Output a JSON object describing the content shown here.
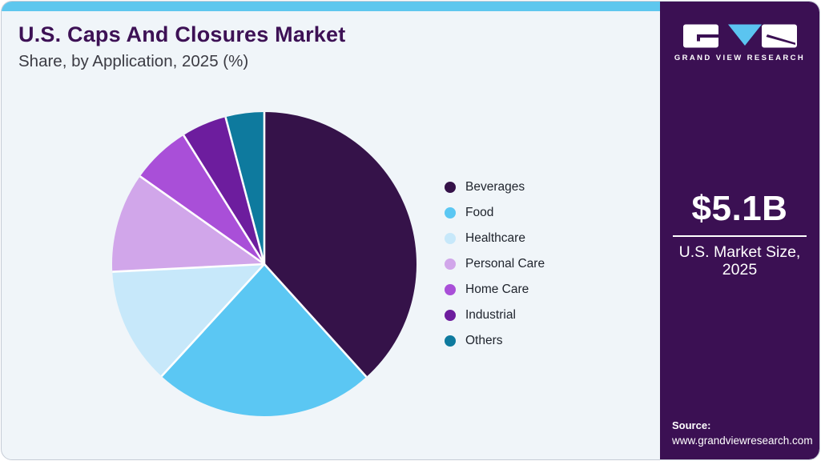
{
  "header": {
    "title": "U.S. Caps And Closures Market",
    "subtitle": "Share, by Application, 2025 (%)"
  },
  "chart_data": {
    "type": "pie",
    "title": "U.S. Caps And Closures Market Share, by Application, 2025 (%)",
    "categories": [
      "Beverages",
      "Food",
      "Healthcare",
      "Personal Care",
      "Home Care",
      "Industrial",
      "Others"
    ],
    "values": [
      38.3,
      23.5,
      12.4,
      10.6,
      6.3,
      4.8,
      4.1
    ],
    "units": "%",
    "colors": [
      "#351249",
      "#5bc7f3",
      "#c7e8fa",
      "#d1a6ea",
      "#a94fd8",
      "#6d1d9e",
      "#0e7a9e"
    ],
    "start_angle_deg": 0,
    "direction": "clockwise",
    "legend_position": "right",
    "slice_separator_color": "#ffffff",
    "data_labels_shown": false
  },
  "sidebar": {
    "logo_text": "GRAND VIEW RESEARCH",
    "market_size_value": "$5.1B",
    "market_size_label_line1": "U.S. Market Size,",
    "market_size_label_line2": "2025",
    "source_label": "Source:",
    "source_url": "www.grandviewresearch.com",
    "background_color": "#3b1053"
  },
  "accent_colors": {
    "top_bar": "#5ec7ee",
    "card_background": "#f0f5f9",
    "title_color": "#3d1155",
    "logo_triangle": "#5bc4f0"
  }
}
